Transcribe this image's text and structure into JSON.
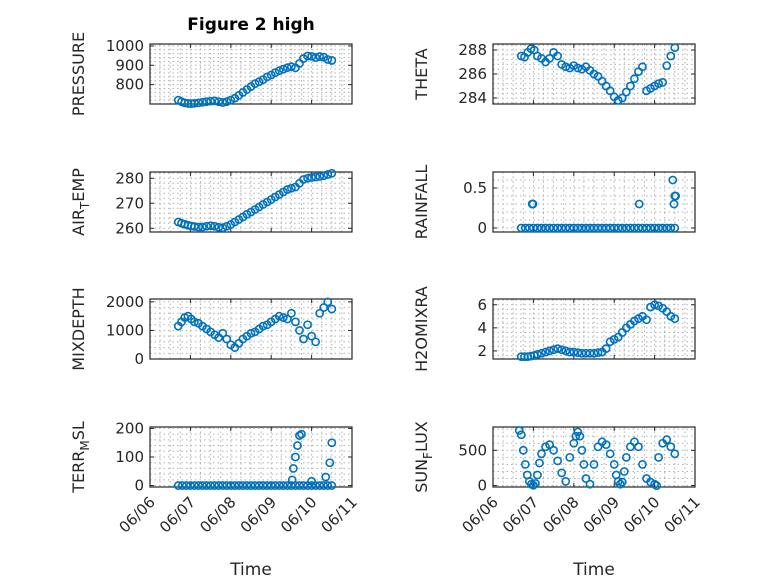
{
  "figure_title": "Figure 2 high",
  "x_ticks": [
    "06/06",
    "06/07",
    "06/08",
    "06/09",
    "06/10",
    "06/11"
  ],
  "x_label": "Time",
  "chart_data": [
    {
      "type": "scatter",
      "title": "Figure 2 high",
      "ylabel": "PRESSURE",
      "ylim": [
        700,
        1010
      ],
      "yticks": [
        800,
        900,
        1000
      ],
      "xlim": [
        6.0,
        11.0
      ],
      "grid": true,
      "series": [
        {
          "x": [
            6.7,
            6.78,
            6.86,
            6.94,
            7.02,
            7.1,
            7.2,
            7.3,
            7.4,
            7.5,
            7.6,
            7.7,
            7.8,
            7.9,
            8.0,
            8.1,
            8.2,
            8.3,
            8.4,
            8.5,
            8.6,
            8.7,
            8.8,
            8.9,
            9.0,
            9.1,
            9.2,
            9.3,
            9.4,
            9.5,
            9.6,
            9.7,
            9.8,
            9.9,
            10.0,
            10.1,
            10.2,
            10.3,
            10.4,
            10.5
          ],
          "y": [
            720,
            712,
            706,
            703,
            702,
            704,
            706,
            709,
            712,
            715,
            716,
            712,
            708,
            712,
            720,
            730,
            745,
            760,
            775,
            790,
            805,
            815,
            826,
            840,
            850,
            862,
            872,
            880,
            888,
            893,
            887,
            910,
            935,
            948,
            946,
            940,
            945,
            942,
            930,
            925
          ]
        }
      ]
    },
    {
      "type": "scatter",
      "ylabel": "THETA",
      "ylim": [
        283.5,
        288.5
      ],
      "yticks": [
        284,
        286,
        288
      ],
      "xlim": [
        6.0,
        11.0
      ],
      "grid": true,
      "series": [
        {
          "x": [
            6.7,
            6.78,
            6.86,
            6.94,
            7.02,
            7.1,
            7.2,
            7.3,
            7.4,
            7.5,
            7.6,
            7.7,
            7.8,
            7.9,
            8.0,
            8.1,
            8.2,
            8.3,
            8.4,
            8.5,
            8.6,
            8.7,
            8.8,
            8.9,
            9.0,
            9.1,
            9.2,
            9.3,
            9.4,
            9.5,
            9.6,
            9.7,
            9.8,
            9.9,
            10.0,
            10.1,
            10.2,
            10.3,
            10.4,
            10.5
          ],
          "y": [
            287.5,
            287.4,
            287.8,
            288.1,
            288.0,
            287.5,
            287.3,
            287.0,
            287.3,
            287.8,
            287.5,
            286.8,
            286.6,
            286.5,
            286.7,
            286.5,
            286.4,
            286.6,
            286.3,
            286.0,
            285.8,
            285.4,
            285.0,
            284.6,
            284.1,
            283.8,
            284.0,
            284.5,
            285.0,
            285.6,
            286.2,
            286.6,
            284.6,
            284.8,
            285.0,
            285.2,
            285.3,
            286.7,
            287.5,
            288.2
          ]
        }
      ]
    },
    {
      "type": "scatter",
      "ylabel": "AIR_TEMP",
      "ylim": [
        258.5,
        282.5
      ],
      "yticks": [
        260,
        270,
        280
      ],
      "xlim": [
        6.0,
        11.0
      ],
      "grid": true,
      "series": [
        {
          "x": [
            6.7,
            6.78,
            6.86,
            6.94,
            7.02,
            7.1,
            7.2,
            7.3,
            7.4,
            7.5,
            7.6,
            7.7,
            7.8,
            7.9,
            8.0,
            8.1,
            8.2,
            8.3,
            8.4,
            8.5,
            8.6,
            8.7,
            8.8,
            8.9,
            9.0,
            9.1,
            9.2,
            9.3,
            9.4,
            9.5,
            9.6,
            9.7,
            9.8,
            9.9,
            10.0,
            10.1,
            10.2,
            10.3,
            10.4,
            10.5
          ],
          "y": [
            262.5,
            262.0,
            261.6,
            261.2,
            260.9,
            260.7,
            260.5,
            260.5,
            260.8,
            261.0,
            260.8,
            260.4,
            260.2,
            260.8,
            261.5,
            262.5,
            263.5,
            264.5,
            265.6,
            266.5,
            267.5,
            268.5,
            269.5,
            270.5,
            271.5,
            272.5,
            273.5,
            274.5,
            275.5,
            276.0,
            276.5,
            278.0,
            279.5,
            280.0,
            280.3,
            280.5,
            280.7,
            281.0,
            281.5,
            282.0
          ]
        }
      ]
    },
    {
      "type": "scatter",
      "ylabel": "RAINFALL",
      "ylim": [
        -0.05,
        0.7
      ],
      "yticks": [
        0,
        0.5
      ],
      "xlim": [
        6.0,
        11.0
      ],
      "grid": true,
      "series": [
        {
          "x": [
            6.7,
            6.8,
            6.9,
            7.0,
            7.1,
            7.2,
            7.3,
            7.4,
            7.5,
            7.6,
            7.7,
            7.8,
            7.9,
            8.0,
            8.1,
            8.2,
            8.3,
            8.4,
            8.5,
            8.6,
            8.7,
            8.8,
            8.9,
            9.0,
            9.1,
            9.2,
            9.3,
            9.4,
            9.5,
            9.6,
            9.7,
            9.8,
            9.9,
            10.0,
            10.1,
            10.2,
            10.3,
            10.4,
            10.5,
            6.97,
            6.99,
            9.62,
            10.45,
            10.48,
            10.5,
            10.52
          ],
          "y": [
            0,
            0,
            0,
            0,
            0,
            0,
            0,
            0,
            0,
            0,
            0,
            0,
            0,
            0,
            0,
            0,
            0,
            0,
            0,
            0,
            0,
            0,
            0,
            0,
            0,
            0,
            0,
            0,
            0,
            0,
            0,
            0,
            0,
            0,
            0,
            0,
            0,
            0,
            0,
            0.3,
            0.3,
            0.3,
            0.6,
            0.3,
            0.4,
            0.4
          ]
        }
      ]
    },
    {
      "type": "scatter",
      "ylabel": "MIXDEPTH",
      "ylim": [
        0,
        2100
      ],
      "yticks": [
        0,
        1000,
        2000
      ],
      "xlim": [
        6.0,
        11.0
      ],
      "grid": true,
      "series": [
        {
          "x": [
            6.7,
            6.78,
            6.86,
            6.94,
            7.02,
            7.1,
            7.2,
            7.3,
            7.4,
            7.5,
            7.6,
            7.7,
            7.8,
            7.9,
            8.0,
            8.1,
            8.2,
            8.3,
            8.4,
            8.5,
            8.6,
            8.7,
            8.8,
            8.9,
            9.0,
            9.1,
            9.2,
            9.3,
            9.4,
            9.5,
            9.6,
            9.7,
            9.8,
            9.9,
            10.0,
            10.1,
            10.2,
            10.3,
            10.4,
            10.5
          ],
          "y": [
            1150,
            1300,
            1450,
            1500,
            1400,
            1300,
            1250,
            1150,
            1050,
            950,
            850,
            750,
            900,
            700,
            500,
            400,
            550,
            700,
            800,
            900,
            950,
            1050,
            1150,
            1200,
            1300,
            1400,
            1500,
            1450,
            1400,
            1600,
            1300,
            1000,
            700,
            1200,
            800,
            600,
            1600,
            1800,
            2000,
            1750
          ]
        }
      ]
    },
    {
      "type": "scatter",
      "ylabel": "H2OMIXRA",
      "ylim": [
        1.3,
        6.5
      ],
      "yticks": [
        2,
        4,
        6
      ],
      "xlim": [
        6.0,
        11.0
      ],
      "grid": true,
      "series": [
        {
          "x": [
            6.7,
            6.78,
            6.86,
            6.94,
            7.02,
            7.1,
            7.2,
            7.3,
            7.4,
            7.5,
            7.6,
            7.7,
            7.8,
            7.9,
            8.0,
            8.1,
            8.2,
            8.3,
            8.4,
            8.5,
            8.6,
            8.7,
            8.8,
            8.9,
            9.0,
            9.1,
            9.2,
            9.3,
            9.4,
            9.5,
            9.6,
            9.7,
            9.8,
            9.9,
            10.0,
            10.1,
            10.2,
            10.3,
            10.4,
            10.5
          ],
          "y": [
            1.5,
            1.5,
            1.5,
            1.55,
            1.6,
            1.7,
            1.8,
            1.9,
            2.0,
            2.1,
            2.2,
            2.1,
            2.0,
            1.9,
            1.9,
            1.85,
            1.8,
            1.8,
            1.8,
            1.8,
            1.85,
            1.9,
            2.2,
            2.8,
            3.0,
            3.2,
            3.6,
            4.0,
            4.3,
            4.6,
            4.8,
            5.0,
            4.7,
            5.8,
            6.0,
            5.9,
            5.7,
            5.4,
            5.0,
            4.8
          ]
        }
      ]
    },
    {
      "type": "scatter",
      "ylabel": "TERR_MSL",
      "ylim": [
        -5,
        205
      ],
      "yticks": [
        0,
        100,
        200
      ],
      "xlim": [
        6.0,
        11.0
      ],
      "grid": true,
      "series": [
        {
          "x": [
            6.7,
            6.8,
            6.9,
            7.0,
            7.1,
            7.2,
            7.3,
            7.4,
            7.5,
            7.6,
            7.7,
            7.8,
            7.9,
            8.0,
            8.1,
            8.2,
            8.3,
            8.4,
            8.5,
            8.6,
            8.7,
            8.8,
            8.9,
            9.0,
            9.1,
            9.2,
            9.3,
            9.4,
            9.5,
            9.6,
            9.7,
            9.8,
            9.9,
            10.0,
            10.1,
            10.2,
            10.3,
            10.4,
            10.5,
            9.55,
            9.6,
            9.65,
            9.7,
            9.75,
            10.35,
            10.45,
            10.5,
            9.52,
            10.0
          ],
          "y": [
            0,
            0,
            0,
            0,
            0,
            0,
            0,
            0,
            0,
            0,
            0,
            0,
            0,
            0,
            0,
            0,
            0,
            0,
            0,
            0,
            0,
            0,
            0,
            0,
            0,
            0,
            0,
            0,
            0,
            0,
            0,
            0,
            0,
            0,
            0,
            0,
            0,
            0,
            0,
            60,
            100,
            140,
            175,
            180,
            30,
            80,
            150,
            20,
            15
          ]
        }
      ]
    },
    {
      "type": "scatter",
      "ylabel": "SUN_FLUX",
      "ylim": [
        -20,
        830
      ],
      "yticks": [
        0,
        500
      ],
      "xlim": [
        6.0,
        11.0
      ],
      "grid": true,
      "series": [
        {
          "x": [
            6.65,
            6.7,
            6.75,
            6.8,
            6.85,
            6.9,
            6.95,
            7.0,
            7.05,
            7.1,
            7.15,
            7.2,
            7.3,
            7.4,
            7.5,
            7.6,
            7.7,
            7.8,
            7.9,
            8.0,
            8.05,
            8.1,
            8.15,
            8.2,
            8.25,
            8.3,
            8.4,
            8.5,
            8.6,
            8.7,
            8.8,
            8.9,
            9.0,
            9.05,
            9.1,
            9.15,
            9.2,
            9.25,
            9.3,
            9.4,
            9.5,
            9.6,
            9.7,
            9.8,
            9.9,
            10.0,
            10.05,
            10.1,
            10.2,
            10.3,
            10.4,
            10.5
          ],
          "y": [
            780,
            720,
            500,
            300,
            150,
            60,
            20,
            5,
            30,
            150,
            320,
            450,
            550,
            580,
            500,
            350,
            180,
            60,
            400,
            600,
            700,
            760,
            700,
            500,
            300,
            100,
            20,
            300,
            550,
            620,
            580,
            450,
            300,
            150,
            60,
            20,
            50,
            200,
            400,
            550,
            620,
            550,
            300,
            100,
            50,
            20,
            0,
            400,
            600,
            650,
            550,
            450
          ]
        }
      ]
    }
  ]
}
